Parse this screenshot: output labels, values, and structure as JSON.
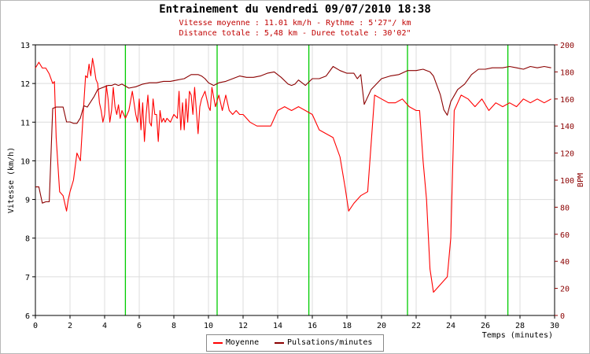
{
  "chart_data": {
    "type": "line",
    "title": "Entrainement du vendredi 09/07/2010 18:38",
    "subtitle_lines": [
      "Vitesse moyenne : 11.01 km/h - Rythme : 5'27\"/ km",
      "Distance totale : 5,48 km - Duree totale : 30'02\""
    ],
    "xlabel": "Temps (minutes)",
    "ylabel_left": "Vitesse (km/h)",
    "ylabel_right": "BPM",
    "xlim": [
      0,
      30
    ],
    "ylim_left": [
      6,
      13
    ],
    "ylim_right": [
      0,
      200
    ],
    "x_ticks": [
      "0",
      "2",
      "4",
      "6",
      "8",
      "10",
      "12",
      "14",
      "16",
      "18",
      "20",
      "22",
      "24",
      "26",
      "28",
      "30"
    ],
    "y_left_ticks": [
      "6",
      "7",
      "8",
      "9",
      "10",
      "11",
      "12",
      "13"
    ],
    "y_right_ticks": [
      "0",
      "20",
      "40",
      "60",
      "80",
      "100",
      "120",
      "140",
      "160",
      "180",
      "200"
    ],
    "grid": true,
    "legend_position": "bottom-center",
    "km_markers": [
      5.2,
      10.5,
      15.8,
      21.5,
      27.3
    ],
    "series": [
      {
        "name": "Moyenne",
        "axis": "left",
        "color": "#ff0000",
        "x": [
          0,
          0.2,
          0.4,
          0.6,
          0.8,
          1.0,
          1.1,
          1.2,
          1.4,
          1.6,
          1.8,
          1.9,
          2.0,
          2.2,
          2.4,
          2.6,
          2.8,
          2.9,
          3.0,
          3.1,
          3.2,
          3.3,
          3.4,
          3.5,
          3.6,
          3.7,
          3.8,
          3.9,
          4.0,
          4.1,
          4.2,
          4.3,
          4.4,
          4.5,
          4.6,
          4.7,
          4.8,
          4.9,
          5.0,
          5.2,
          5.4,
          5.6,
          5.8,
          5.9,
          6.0,
          6.1,
          6.2,
          6.3,
          6.4,
          6.5,
          6.6,
          6.7,
          6.8,
          6.9,
          7.0,
          7.1,
          7.2,
          7.3,
          7.4,
          7.5,
          7.6,
          7.8,
          8.0,
          8.2,
          8.3,
          8.4,
          8.5,
          8.6,
          8.7,
          8.8,
          8.9,
          9.0,
          9.1,
          9.2,
          9.3,
          9.4,
          9.5,
          9.6,
          9.8,
          10.0,
          10.1,
          10.2,
          10.4,
          10.6,
          10.8,
          11.0,
          11.2,
          11.4,
          11.6,
          11.8,
          12.0,
          12.4,
          12.8,
          13.2,
          13.6,
          14.0,
          14.4,
          14.8,
          15.2,
          15.6,
          16.0,
          16.4,
          16.8,
          17.2,
          17.6,
          17.9,
          18.1,
          18.4,
          18.8,
          19.2,
          19.6,
          20.0,
          20.4,
          20.8,
          21.2,
          21.6,
          22.0,
          22.2,
          22.4,
          22.6,
          22.8,
          23.0,
          23.2,
          23.6,
          23.8,
          24.0,
          24.2,
          24.6,
          25.0,
          25.4,
          25.8,
          26.2,
          26.6,
          27.0,
          27.4,
          27.8,
          28.2,
          28.6,
          29.0,
          29.4,
          29.8
        ],
        "values": [
          12.4,
          12.55,
          12.4,
          12.4,
          12.25,
          12.0,
          12.05,
          10.6,
          9.2,
          9.1,
          8.7,
          9.0,
          9.2,
          9.5,
          10.2,
          10.0,
          11.5,
          12.2,
          12.15,
          12.5,
          12.2,
          12.65,
          12.4,
          12.1,
          12.0,
          11.5,
          11.3,
          11.0,
          11.2,
          11.95,
          11.6,
          11.0,
          11.3,
          11.9,
          11.4,
          11.2,
          11.45,
          11.1,
          11.3,
          11.1,
          11.3,
          11.8,
          11.2,
          11.0,
          11.6,
          10.8,
          11.5,
          10.5,
          11.2,
          11.7,
          11.0,
          10.9,
          11.6,
          11.2,
          11.2,
          10.5,
          11.3,
          11.0,
          11.1,
          11.0,
          11.1,
          11.0,
          11.2,
          11.1,
          11.8,
          10.8,
          11.5,
          10.8,
          11.6,
          11.0,
          11.8,
          11.7,
          11.2,
          11.9,
          11.3,
          10.7,
          11.4,
          11.6,
          11.8,
          11.4,
          11.3,
          11.9,
          11.4,
          11.7,
          11.3,
          11.7,
          11.3,
          11.2,
          11.3,
          11.2,
          11.2,
          11.0,
          10.9,
          10.9,
          10.9,
          11.3,
          11.4,
          11.3,
          11.4,
          11.3,
          11.2,
          10.8,
          10.7,
          10.6,
          10.1,
          9.3,
          8.7,
          8.9,
          9.1,
          9.2,
          11.7,
          11.6,
          11.5,
          11.5,
          11.6,
          11.4,
          11.3,
          11.3,
          10.0,
          9.0,
          7.2,
          6.6,
          6.7,
          6.9,
          7.0,
          8.0,
          11.3,
          11.7,
          11.6,
          11.4,
          11.6,
          11.3,
          11.5,
          11.4,
          11.5,
          11.4,
          11.6,
          11.5,
          11.6,
          11.5,
          11.6
        ]
      },
      {
        "name": "Pulsations/minutes",
        "axis": "right",
        "color": "#8b0000",
        "x": [
          0,
          0.2,
          0.4,
          0.6,
          0.8,
          1.0,
          1.2,
          1.6,
          1.8,
          2.0,
          2.2,
          2.4,
          2.6,
          2.8,
          3.0,
          3.4,
          3.6,
          3.8,
          4.0,
          4.2,
          4.4,
          4.6,
          4.8,
          5.0,
          5.4,
          5.8,
          6.2,
          6.6,
          7.0,
          7.4,
          7.8,
          8.2,
          8.6,
          9.0,
          9.4,
          9.6,
          9.8,
          10.0,
          10.3,
          10.6,
          11.0,
          11.4,
          11.8,
          12.2,
          12.6,
          13.0,
          13.4,
          13.8,
          14.2,
          14.6,
          14.8,
          15.0,
          15.2,
          15.6,
          16.0,
          16.4,
          16.8,
          17.2,
          17.6,
          18.0,
          18.4,
          18.6,
          18.8,
          19.0,
          19.4,
          20.0,
          20.5,
          21.0,
          21.5,
          22.0,
          22.4,
          22.8,
          23.0,
          23.2,
          23.4,
          23.6,
          23.8,
          24.0,
          24.4,
          24.8,
          25.2,
          25.6,
          26.0,
          26.4,
          27.0,
          27.4,
          27.8,
          28.2,
          28.6,
          29.0,
          29.4,
          29.8
        ],
        "values": [
          95,
          95,
          83,
          84,
          84,
          153,
          154,
          154,
          143,
          143,
          142,
          142,
          146,
          155,
          154,
          162,
          167,
          168,
          169,
          170,
          170,
          171,
          170,
          171,
          168,
          169,
          171,
          172,
          172,
          173,
          173,
          174,
          175,
          178,
          178,
          177,
          175,
          172,
          170,
          172,
          173,
          175,
          177,
          176,
          176,
          177,
          179,
          180,
          176,
          171,
          170,
          171,
          174,
          170,
          175,
          175,
          177,
          184,
          181,
          179,
          179,
          175,
          178,
          156,
          167,
          175,
          177,
          178,
          181,
          181,
          182,
          180,
          177,
          170,
          163,
          152,
          148,
          158,
          167,
          171,
          178,
          182,
          182,
          183,
          183,
          184,
          183,
          182,
          184,
          183,
          184,
          183
        ]
      }
    ]
  }
}
